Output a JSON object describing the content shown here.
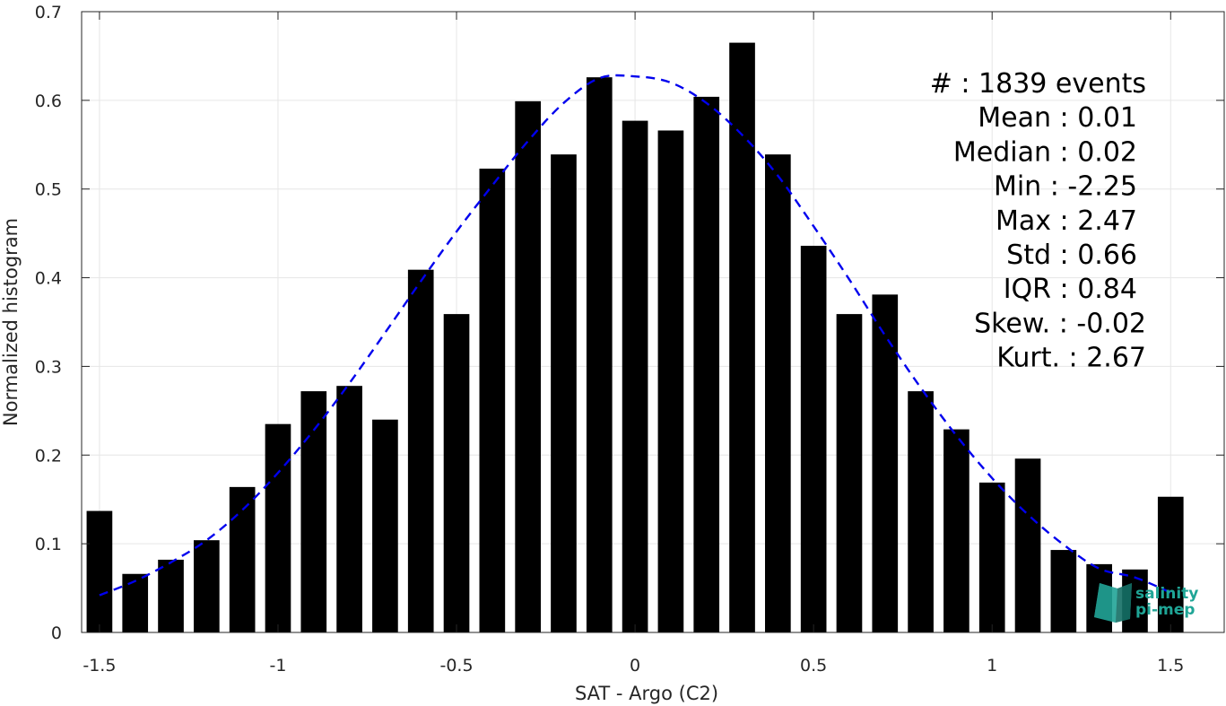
{
  "chart_data": {
    "type": "bar",
    "xlabel": "SAT - Argo (C2)",
    "ylabel": "Normalized histogram",
    "xlim": [
      -1.5,
      1.5
    ],
    "ylim": [
      0,
      0.7
    ],
    "xticks": [
      "-1.5",
      "-1",
      "-0.5",
      "0",
      "0.5",
      "1",
      "1.5"
    ],
    "yticks": [
      "0",
      "0.1",
      "0.2",
      "0.3",
      "0.4",
      "0.5",
      "0.6",
      "0.7"
    ],
    "grid": true,
    "bars": {
      "color": "#000000",
      "x": [
        -1.5,
        -1.4,
        -1.3,
        -1.2,
        -1.1,
        -1.0,
        -0.9,
        -0.8,
        -0.7,
        -0.6,
        -0.5,
        -0.4,
        -0.3,
        -0.2,
        -0.1,
        0.0,
        0.1,
        0.2,
        0.3,
        0.4,
        0.5,
        0.6,
        0.7,
        0.8,
        0.9,
        1.0,
        1.1,
        1.2,
        1.3,
        1.4,
        1.5
      ],
      "values": [
        0.137,
        0.066,
        0.082,
        0.104,
        0.164,
        0.235,
        0.272,
        0.278,
        0.24,
        0.409,
        0.359,
        0.523,
        0.599,
        0.539,
        0.626,
        0.577,
        0.566,
        0.604,
        0.665,
        0.539,
        0.436,
        0.359,
        0.381,
        0.272,
        0.229,
        0.169,
        0.196,
        0.093,
        0.077,
        0.071,
        0.153
      ]
    },
    "fit": {
      "style": "dashed",
      "color": "#0000ee",
      "x": [
        -1.5,
        -1.4,
        -1.3,
        -1.2,
        -1.1,
        -1.0,
        -0.9,
        -0.8,
        -0.7,
        -0.6,
        -0.5,
        -0.4,
        -0.3,
        -0.2,
        -0.1,
        0.0,
        0.1,
        0.2,
        0.3,
        0.4,
        0.5,
        0.6,
        0.7,
        0.8,
        0.9,
        1.0,
        1.1,
        1.2,
        1.3,
        1.4,
        1.5
      ],
      "y": [
        0.042,
        0.058,
        0.079,
        0.104,
        0.138,
        0.18,
        0.228,
        0.281,
        0.338,
        0.396,
        0.452,
        0.504,
        0.554,
        0.597,
        0.625,
        0.627,
        0.62,
        0.597,
        0.561,
        0.515,
        0.458,
        0.398,
        0.335,
        0.276,
        0.222,
        0.174,
        0.133,
        0.099,
        0.072,
        0.062,
        0.045
      ]
    },
    "stats": [
      "#  : 1839 events",
      "Mean : 0.01",
      "Median : 0.02",
      "Min : -2.25",
      "Max : 2.47",
      "Std : 0.66",
      "IQR : 0.84",
      "Skew. : -0.02",
      "Kurt. : 2.67"
    ]
  },
  "logo": {
    "line1": "salinity",
    "line2": "pi-mep",
    "color": "#1fa596"
  }
}
